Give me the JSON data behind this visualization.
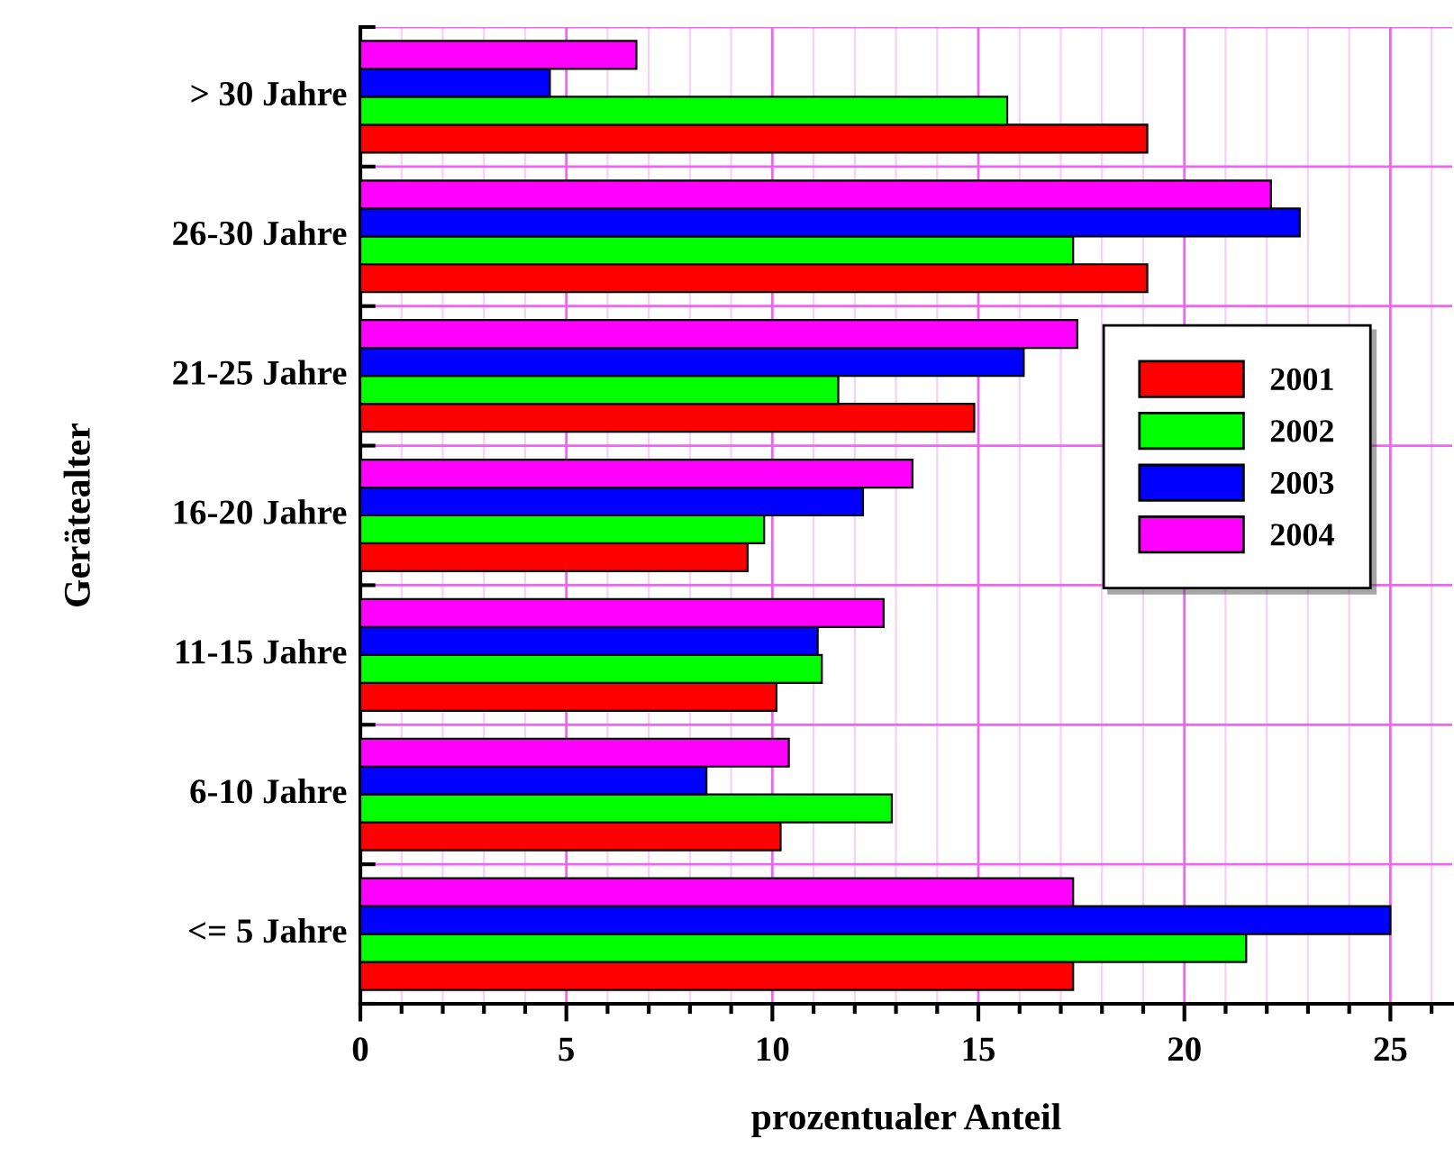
{
  "chart_data": {
    "type": "bar",
    "orientation": "horizontal",
    "xlabel": "prozentualer Anteil",
    "ylabel": "Gerätealter",
    "categories": [
      "> 30 Jahre",
      "26-30 Jahre",
      "21-25 Jahre",
      "16-20 Jahre",
      "11-15 Jahre",
      "6-10 Jahre",
      "<= 5 Jahre"
    ],
    "series": [
      {
        "name": "2001",
        "color": "#ff0000",
        "values": [
          19.1,
          19.1,
          14.9,
          9.4,
          10.1,
          10.2,
          17.3
        ]
      },
      {
        "name": "2002",
        "color": "#00ff00",
        "values": [
          15.7,
          17.3,
          11.6,
          9.8,
          11.2,
          12.9,
          21.5
        ]
      },
      {
        "name": "2003",
        "color": "#0000ff",
        "values": [
          4.6,
          22.8,
          16.1,
          12.2,
          11.1,
          8.4,
          25.0
        ]
      },
      {
        "name": "2004",
        "color": "#ff00ff",
        "values": [
          6.7,
          22.1,
          17.4,
          13.4,
          12.7,
          10.4,
          17.3
        ]
      }
    ],
    "xlim": [
      0,
      26.5
    ],
    "xticks": [
      0,
      {
        "value": 1,
        "label": null
      },
      {
        "value": 2,
        "label": null
      },
      {
        "value": 3,
        "label": null
      },
      {
        "value": 4,
        "label": null
      },
      5,
      {
        "value": 6,
        "label": null
      },
      {
        "value": 7,
        "label": null
      },
      {
        "value": 8,
        "label": null
      },
      {
        "value": 9,
        "label": null
      },
      10,
      {
        "value": 11,
        "label": null
      },
      {
        "value": 12,
        "label": null
      },
      {
        "value": 13,
        "label": null
      },
      {
        "value": 14,
        "label": null
      },
      15,
      {
        "value": 16,
        "label": null
      },
      {
        "value": 17,
        "label": null
      },
      {
        "value": 18,
        "label": null
      },
      {
        "value": 19,
        "label": null
      },
      20,
      {
        "value": 21,
        "label": null
      },
      {
        "value": 22,
        "label": null
      },
      {
        "value": 23,
        "label": null
      },
      {
        "value": 24,
        "label": null
      },
      25,
      {
        "value": 26,
        "label": null
      }
    ],
    "grid": true,
    "legend": "right"
  }
}
